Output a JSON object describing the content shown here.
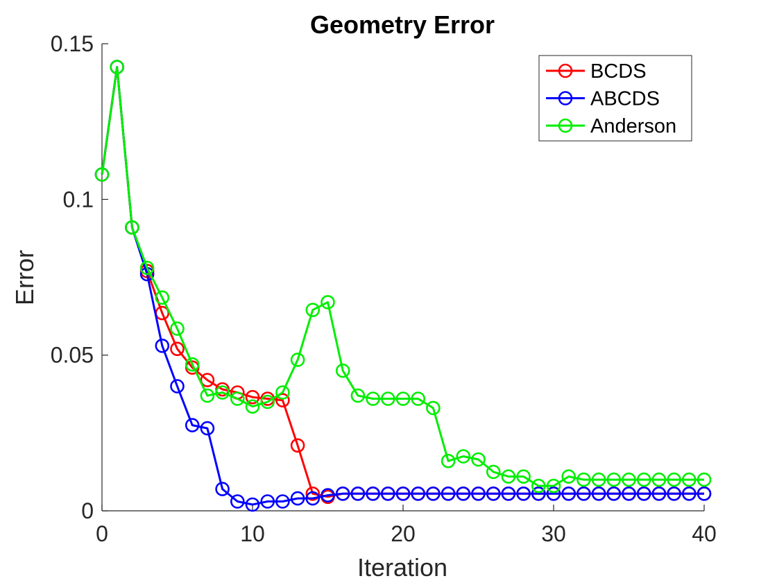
{
  "chart_data": {
    "type": "line",
    "title": "Geometry Error",
    "xlabel": "Iteration",
    "ylabel": "Error",
    "xlim": [
      0,
      40
    ],
    "ylim": [
      0,
      0.15
    ],
    "xticks": [
      0,
      10,
      20,
      30,
      40
    ],
    "xtick_labels": [
      "0",
      "10",
      "20",
      "30",
      "40"
    ],
    "yticks": [
      0,
      0.05,
      0.1,
      0.15
    ],
    "ytick_labels": [
      "0",
      "0.05",
      "0.1",
      "0.15"
    ],
    "grid": false,
    "legend_position": "top-right",
    "series": [
      {
        "name": "BCDS",
        "color": "#ff0000",
        "x": [
          0,
          1,
          2,
          3,
          4,
          5,
          6,
          7,
          8,
          9,
          10,
          11,
          12,
          13,
          14,
          15,
          16,
          17,
          18,
          19,
          20,
          21,
          22,
          23,
          24,
          25,
          26,
          27,
          28,
          29,
          30,
          31,
          32,
          33,
          34,
          35,
          36,
          37,
          38,
          39,
          40
        ],
        "values": [
          0.108,
          0.1425,
          0.091,
          0.077,
          0.0635,
          0.052,
          0.046,
          0.042,
          0.039,
          0.038,
          0.0365,
          0.036,
          0.0355,
          0.021,
          0.0055,
          0.0045,
          0.0055,
          0.0055,
          0.0055,
          0.0055,
          0.0055,
          0.0055,
          0.0055,
          0.0055,
          0.0055,
          0.0055,
          0.0055,
          0.0055,
          0.0055,
          0.0055,
          0.0055,
          0.0055,
          0.0055,
          0.0055,
          0.0055,
          0.0055,
          0.0055,
          0.0055,
          0.0055,
          0.0055,
          0.0055
        ]
      },
      {
        "name": "ABCDS",
        "color": "#0000ff",
        "x": [
          0,
          1,
          2,
          3,
          4,
          5,
          6,
          7,
          8,
          9,
          10,
          11,
          12,
          13,
          14,
          15,
          16,
          17,
          18,
          19,
          20,
          21,
          22,
          23,
          24,
          25,
          26,
          27,
          28,
          29,
          30,
          31,
          32,
          33,
          34,
          35,
          36,
          37,
          38,
          39,
          40
        ],
        "values": [
          0.108,
          0.1425,
          0.091,
          0.076,
          0.053,
          0.04,
          0.0275,
          0.0265,
          0.007,
          0.003,
          0.002,
          0.003,
          0.003,
          0.004,
          0.004,
          0.005,
          0.0055,
          0.0055,
          0.0055,
          0.0055,
          0.0055,
          0.0055,
          0.0055,
          0.0055,
          0.0055,
          0.0055,
          0.0055,
          0.0055,
          0.0055,
          0.0055,
          0.0055,
          0.0055,
          0.0055,
          0.0055,
          0.0055,
          0.0055,
          0.0055,
          0.0055,
          0.0055,
          0.0055,
          0.0055
        ]
      },
      {
        "name": "Anderson",
        "color": "#00ee00",
        "x": [
          0,
          1,
          2,
          3,
          4,
          5,
          6,
          7,
          8,
          9,
          10,
          11,
          12,
          13,
          14,
          15,
          16,
          17,
          18,
          19,
          20,
          21,
          22,
          23,
          24,
          25,
          26,
          27,
          28,
          29,
          30,
          31,
          32,
          33,
          34,
          35,
          36,
          37,
          38,
          39,
          40
        ],
        "values": [
          0.108,
          0.1425,
          0.091,
          0.078,
          0.0685,
          0.0585,
          0.047,
          0.037,
          0.038,
          0.036,
          0.0335,
          0.035,
          0.038,
          0.0485,
          0.0645,
          0.067,
          0.045,
          0.037,
          0.036,
          0.036,
          0.036,
          0.036,
          0.033,
          0.016,
          0.0175,
          0.0165,
          0.0125,
          0.011,
          0.011,
          0.008,
          0.008,
          0.011,
          0.01,
          0.01,
          0.01,
          0.01,
          0.01,
          0.01,
          0.01,
          0.01,
          0.01
        ]
      }
    ]
  }
}
